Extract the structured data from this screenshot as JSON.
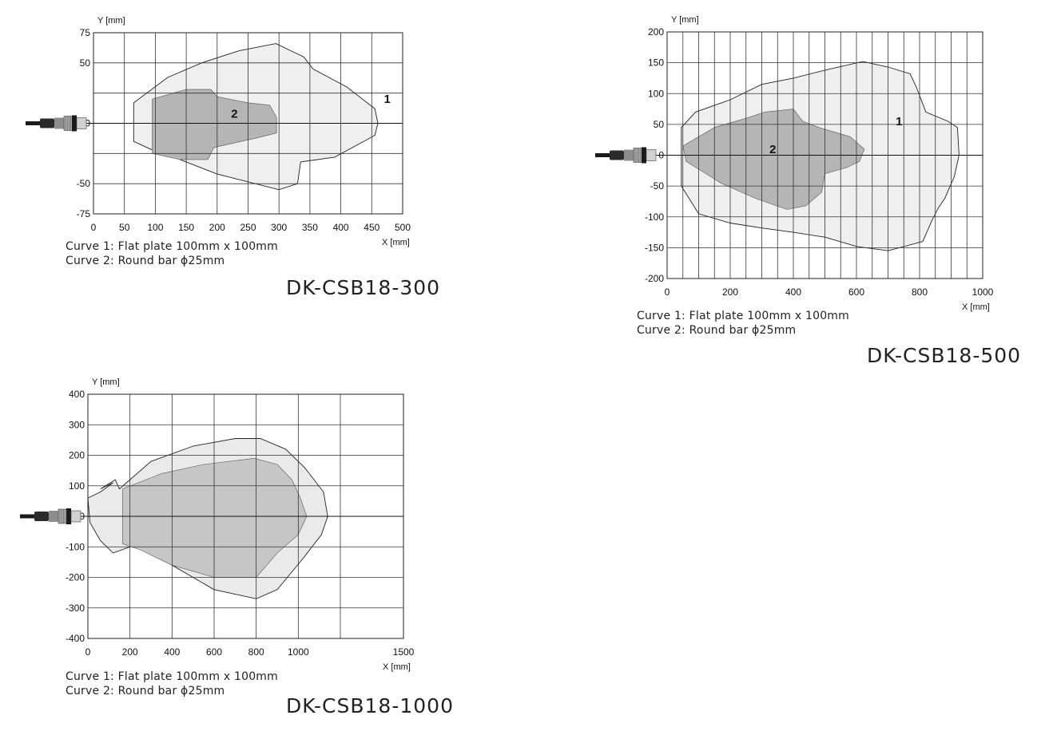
{
  "charts": [
    {
      "id": "c300",
      "model": "DK-CSB18-300",
      "notes": [
        "Curve 1: Flat plate 100mm x 100mm",
        "Curve 2: Round bar ϕ25mm"
      ]
    },
    {
      "id": "c500",
      "model": "DK-CSB18-500",
      "notes": [
        "Curve 1: Flat plate 100mm x 100mm",
        "Curve 2: Round bar ϕ25mm"
      ]
    },
    {
      "id": "c1000",
      "model": "DK-CSB18-1000",
      "notes": [
        "Curve 1: Flat plate 100mm x 100mm",
        "Curve 2: Round bar ϕ25mm"
      ]
    }
  ],
  "chart_data": [
    {
      "type": "area",
      "model": "DK-CSB18-300",
      "xlabel": "X [mm]",
      "ylabel": "Y [mm]",
      "xlim": [
        0,
        500
      ],
      "ylim": [
        -75,
        75
      ],
      "xticks": [
        0,
        50,
        100,
        150,
        200,
        250,
        300,
        350,
        400,
        450,
        500
      ],
      "yticks": [
        -75,
        -50,
        0,
        50,
        75
      ],
      "ygrid": [
        -75,
        -50,
        -25,
        0,
        25,
        50,
        75
      ],
      "grid": true,
      "colors": {
        "curve1": "#efefef",
        "curve2": "#b5b5b5",
        "grid": "#333333"
      },
      "series": [
        {
          "label": "1",
          "label_at": [
            475,
            20
          ],
          "points": [
            [
              65,
              17
            ],
            [
              120,
              38
            ],
            [
              175,
              50
            ],
            [
              235,
              60
            ],
            [
              295,
              66
            ],
            [
              340,
              55
            ],
            [
              355,
              45
            ],
            [
              410,
              30
            ],
            [
              455,
              12
            ],
            [
              460,
              0
            ],
            [
              455,
              -10
            ],
            [
              390,
              -28
            ],
            [
              335,
              -32
            ],
            [
              330,
              -50
            ],
            [
              300,
              -55
            ],
            [
              200,
              -42
            ],
            [
              130,
              -28
            ],
            [
              95,
              -22
            ],
            [
              65,
              -15
            ]
          ]
        },
        {
          "label": "2",
          "label_at": [
            228,
            8
          ],
          "points": [
            [
              95,
              20
            ],
            [
              150,
              28
            ],
            [
              190,
              28
            ],
            [
              200,
              22
            ],
            [
              250,
              17
            ],
            [
              285,
              15
            ],
            [
              296,
              5
            ],
            [
              296,
              -8
            ],
            [
              265,
              -12
            ],
            [
              195,
              -20
            ],
            [
              185,
              -30
            ],
            [
              140,
              -30
            ],
            [
              95,
              -25
            ]
          ]
        }
      ]
    },
    {
      "type": "area",
      "model": "DK-CSB18-500",
      "xlabel": "X [mm]",
      "ylabel": "Y [mm]",
      "xlim": [
        0,
        1000
      ],
      "ylim": [
        -200,
        200
      ],
      "xticks": [
        0,
        200,
        400,
        600,
        800,
        1000
      ],
      "yticks": [
        -200,
        -150,
        -100,
        -50,
        0,
        50,
        100,
        150,
        200
      ],
      "xgrid": [
        0,
        50,
        100,
        150,
        200,
        250,
        300,
        350,
        400,
        450,
        500,
        550,
        600,
        650,
        700,
        750,
        800,
        850,
        900,
        950,
        1000
      ],
      "grid": true,
      "colors": {
        "curve1": "#efefef",
        "curve2": "#b5b5b5",
        "grid": "#333333"
      },
      "series": [
        {
          "label": "1",
          "label_at": [
            735,
            55
          ],
          "points": [
            [
              45,
              45
            ],
            [
              90,
              70
            ],
            [
              200,
              90
            ],
            [
              300,
              115
            ],
            [
              400,
              125
            ],
            [
              500,
              138
            ],
            [
              620,
              152
            ],
            [
              700,
              143
            ],
            [
              770,
              132
            ],
            [
              790,
              110
            ],
            [
              820,
              70
            ],
            [
              890,
              55
            ],
            [
              920,
              45
            ],
            [
              925,
              0
            ],
            [
              910,
              -35
            ],
            [
              880,
              -70
            ],
            [
              860,
              -85
            ],
            [
              840,
              -105
            ],
            [
              810,
              -140
            ],
            [
              700,
              -155
            ],
            [
              600,
              -148
            ],
            [
              500,
              -133
            ],
            [
              400,
              -125
            ],
            [
              300,
              -118
            ],
            [
              200,
              -110
            ],
            [
              100,
              -95
            ],
            [
              45,
              -50
            ]
          ]
        },
        {
          "label": "2",
          "label_at": [
            335,
            10
          ],
          "points": [
            [
              50,
              15
            ],
            [
              150,
              45
            ],
            [
              250,
              60
            ],
            [
              310,
              70
            ],
            [
              400,
              75
            ],
            [
              430,
              55
            ],
            [
              480,
              45
            ],
            [
              580,
              30
            ],
            [
              625,
              10
            ],
            [
              610,
              -10
            ],
            [
              570,
              -20
            ],
            [
              500,
              -30
            ],
            [
              490,
              -60
            ],
            [
              440,
              -82
            ],
            [
              380,
              -88
            ],
            [
              280,
              -70
            ],
            [
              170,
              -45
            ],
            [
              60,
              -10
            ]
          ]
        }
      ]
    },
    {
      "type": "area",
      "model": "DK-CSB18-1000",
      "xlabel": "X [mm]",
      "ylabel": "Y [mm]",
      "xlim": [
        0,
        1500
      ],
      "ylim": [
        -400,
        400
      ],
      "xticks": [
        0,
        200,
        400,
        600,
        800,
        1000,
        1500
      ],
      "yticks": [
        -400,
        -300,
        -200,
        -100,
        0,
        100,
        200,
        300,
        400
      ],
      "xgrid": [
        0,
        200,
        400,
        600,
        800,
        1000,
        1200
      ],
      "ygrid": [
        -400,
        -300,
        -200,
        -100,
        0,
        100,
        200,
        300,
        400
      ],
      "grid": true,
      "colors": {
        "curve1": "#eaeaea",
        "curve2": "#c6c6c6",
        "grid": "#333333"
      },
      "series": [
        {
          "label": "",
          "points": [
            [
              0,
              60
            ],
            [
              60,
              80
            ],
            [
              120,
              110
            ],
            [
              60,
              90
            ],
            [
              130,
              120
            ],
            [
              150,
              90
            ],
            [
              300,
              180
            ],
            [
              500,
              230
            ],
            [
              700,
              255
            ],
            [
              820,
              255
            ],
            [
              940,
              220
            ],
            [
              1030,
              160
            ],
            [
              1120,
              80
            ],
            [
              1140,
              0
            ],
            [
              1110,
              -60
            ],
            [
              1020,
              -140
            ],
            [
              900,
              -240
            ],
            [
              800,
              -270
            ],
            [
              600,
              -240
            ],
            [
              400,
              -160
            ],
            [
              250,
              -90
            ],
            [
              200,
              -100
            ],
            [
              120,
              -120
            ],
            [
              60,
              -80
            ],
            [
              10,
              -20
            ]
          ]
        },
        {
          "label": "",
          "points": [
            [
              165,
              90
            ],
            [
              350,
              140
            ],
            [
              550,
              170
            ],
            [
              790,
              190
            ],
            [
              900,
              170
            ],
            [
              970,
              120
            ],
            [
              1010,
              60
            ],
            [
              1040,
              0
            ],
            [
              1000,
              -60
            ],
            [
              900,
              -120
            ],
            [
              800,
              -200
            ],
            [
              600,
              -200
            ],
            [
              400,
              -160
            ],
            [
              250,
              -110
            ],
            [
              165,
              -90
            ]
          ]
        }
      ]
    }
  ]
}
